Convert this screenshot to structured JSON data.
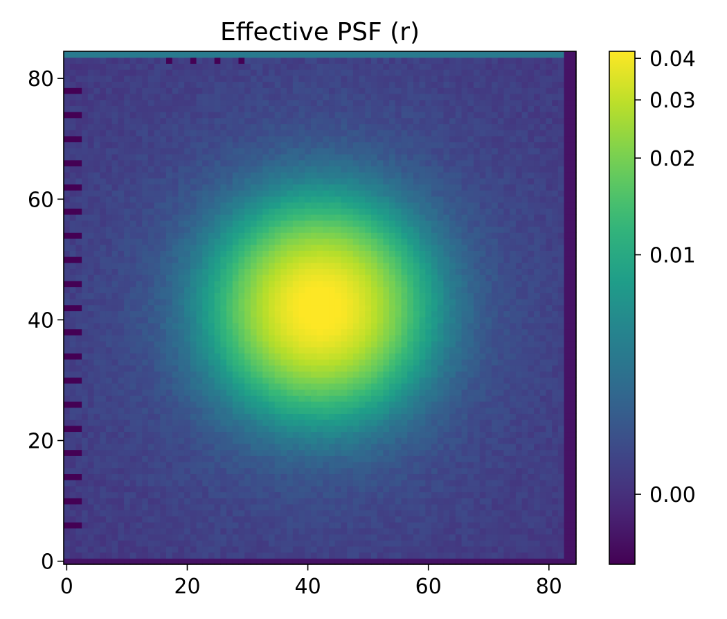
{
  "chart_data": {
    "type": "heatmap",
    "title": "Effective PSF (r)",
    "xlabel": "",
    "ylabel": "",
    "grid_size": [
      85,
      85
    ],
    "xlim": [
      -0.5,
      84.5
    ],
    "ylim": [
      -0.5,
      84.5
    ],
    "origin": "lower",
    "colormap": "viridis",
    "color_scale": "asinh",
    "center": [
      42,
      42
    ],
    "peak_value": 0.04,
    "background_value": 0.0,
    "color_range": [
      -0.002,
      0.042
    ],
    "x_ticks": [
      {
        "value": 0,
        "label": "0"
      },
      {
        "value": 20,
        "label": "20"
      },
      {
        "value": 40,
        "label": "40"
      },
      {
        "value": 60,
        "label": "60"
      },
      {
        "value": 80,
        "label": "80"
      }
    ],
    "y_ticks": [
      {
        "value": 0,
        "label": "0"
      },
      {
        "value": 20,
        "label": "20"
      },
      {
        "value": 40,
        "label": "40"
      },
      {
        "value": 60,
        "label": "60"
      },
      {
        "value": 80,
        "label": "80"
      }
    ],
    "colorbar": {
      "ticks": [
        {
          "value": 0.04,
          "label": "0.04"
        },
        {
          "value": 0.03,
          "label": "0.03"
        },
        {
          "value": 0.02,
          "label": "0.02"
        },
        {
          "value": 0.01,
          "label": "0.01"
        },
        {
          "value": 0.0,
          "label": "0.00"
        }
      ]
    },
    "colors": {
      "viridis_stops": [
        "#440154",
        "#482878",
        "#3e4989",
        "#31688e",
        "#26828e",
        "#1f9e89",
        "#35b779",
        "#6ece58",
        "#b5de2b",
        "#fde725"
      ]
    }
  }
}
